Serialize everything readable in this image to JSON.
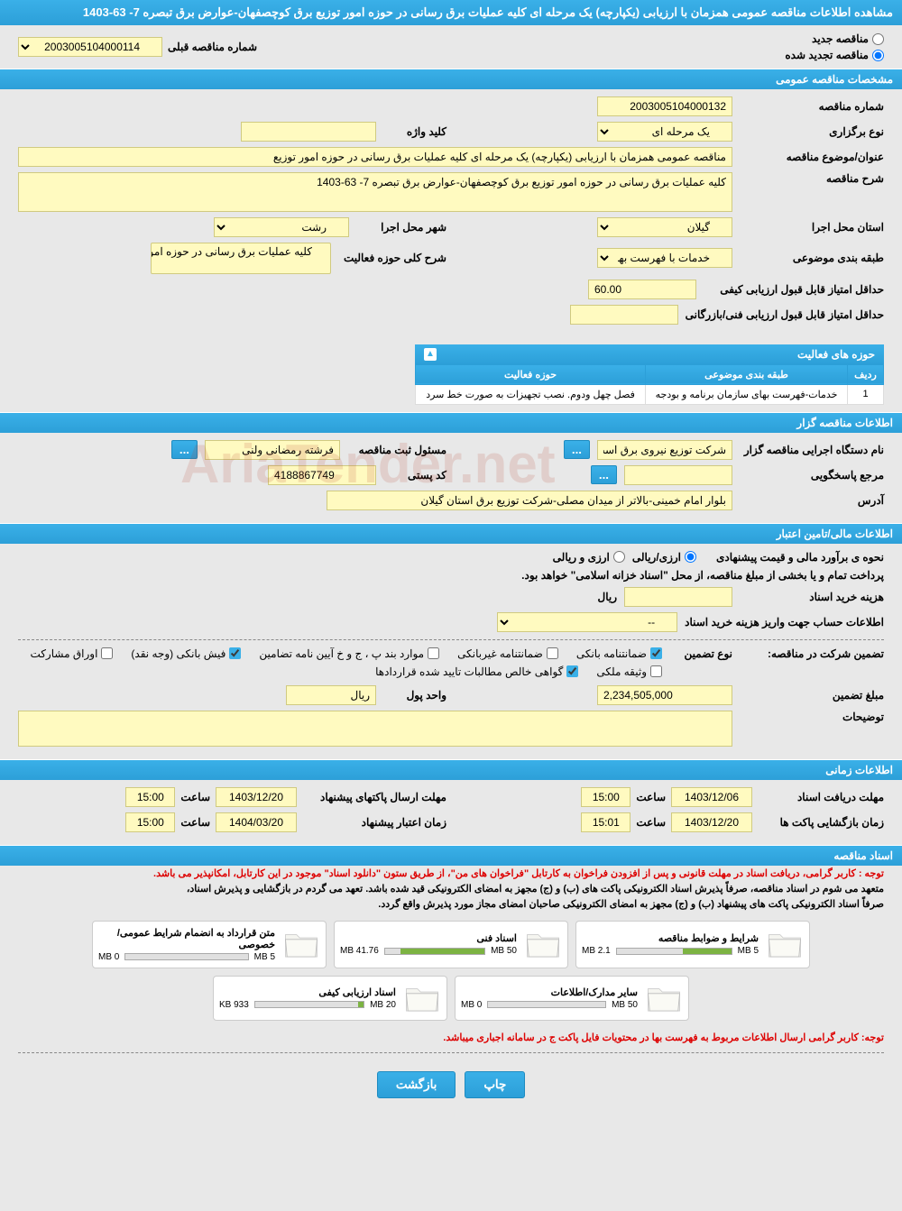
{
  "header": {
    "title": "مشاهده اطلاعات مناقصه عمومی همزمان با ارزیابی (یکپارچه) یک مرحله ای کلیه عملیات برق رسانی در حوزه امور توزیع برق کوچصفهان-عوارض برق تبصره 7- 63-1403"
  },
  "topRadio": {
    "new": "مناقصه جدید",
    "renewed": "مناقصه تجدید شده",
    "prevLabel": "شماره مناقصه قبلی",
    "prevValue": "2003005104000114"
  },
  "sections": {
    "general": "مشخصات مناقصه عمومی",
    "organizer": "اطلاعات مناقصه گزار",
    "financial": "اطلاعات مالی/تامین اعتبار",
    "timing": "اطلاعات زمانی",
    "docs": "اسناد مناقصه"
  },
  "general": {
    "tenderNumberLabel": "شماره مناقصه",
    "tenderNumber": "2003005104000132",
    "typeLabel": "نوع برگزاری",
    "typeValue": "یک مرحله ای",
    "keywordLabel": "کلید واژه",
    "keywordValue": "",
    "subjectLabel": "عنوان/موضوع مناقصه",
    "subjectValue": "مناقصه عمومی همزمان با ارزیابی (یکپارچه) یک مرحله ای کلیه عملیات برق رسانی در حوزه امور توزیع",
    "descLabel": "شرح مناقصه",
    "descValue": "کلیه عملیات برق رسانی در حوزه امور توزیع برق کوچصفهان-عوارض برق تبصره 7- 63-1403",
    "provinceLabel": "استان محل اجرا",
    "provinceValue": "گیلان",
    "cityLabel": "شهر محل اجرا",
    "cityValue": "رشت",
    "categoryLabel": "طبقه بندی موضوعی",
    "categoryValue": "خدمات با فهرست بها",
    "scopeLabel": "شرح کلی حوزه فعالیت",
    "scopeValue": "کلیه عملیات برق رسانی در حوزه امور توزیع برق",
    "minScoreQualLabel": "حداقل امتیاز قابل قبول ارزیابی کیفی",
    "minScoreQual": "60.00",
    "minScoreTechLabel": "حداقل امتیاز قابل قبول ارزیابی فنی/بازرگانی",
    "minScoreTech": ""
  },
  "activityTable": {
    "title": "حوزه های فعالیت",
    "cols": [
      "ردیف",
      "طبقه بندی موضوعی",
      "حوزه فعالیت"
    ],
    "rows": [
      [
        "1",
        "خدمات-فهرست بهای سازمان برنامه و بودجه",
        "فصل چهل ودوم. نصب تجهیزات به صورت خط سرد"
      ]
    ]
  },
  "organizer": {
    "orgLabel": "نام دستگاه اجرایی مناقصه گزار",
    "orgValue": "شرکت توزیع نیروی برق است",
    "responsibleLabel": "مسئول ثبت مناقصه",
    "responsibleValue": "فرشته رمضانی ولنی",
    "phoneLabel": "مرجع پاسخگویی",
    "phoneValue": "",
    "postalLabel": "کد پستی",
    "postalValue": "4188867749",
    "addressLabel": "آدرس",
    "addressValue": "بلوار امام خمینی-بالاتر از میدان مصلی-شرکت توزیع برق استان گیلان"
  },
  "financial": {
    "methodLabel": "نحوه ی برآورد مالی و قیمت پیشنهادی",
    "methodOpt1": "ارزی/ریالی",
    "methodOpt2": "ارزی و ریالی",
    "treasuryNote": "پرداخت تمام و یا بخشی از مبلغ مناقصه، از محل \"اسناد خزانه اسلامی\" خواهد بود.",
    "docCostLabel": "هزینه خرید اسناد",
    "docCostValue": "",
    "currencyRial": "ریال",
    "accountLabel": "اطلاعات حساب جهت واریز هزینه خرید اسناد",
    "accountValue": "--",
    "guaranteeLabel": "تضمین شرکت در مناقصه:",
    "guaranteeTypeLabel": "نوع تضمین",
    "gt1": "ضمانتنامه بانکی",
    "gt2": "ضمانتنامه غیربانکی",
    "gt3": "موارد بند پ ، ج و خ آیین نامه تضامین",
    "gt4": "فیش بانکی (وجه نقد)",
    "gt5": "اوراق مشارکت",
    "gt6": "وثیقه ملکی",
    "gt7": "گواهی خالص مطالبات تایید شده قراردادها",
    "guaranteeAmountLabel": "مبلغ تضمین",
    "guaranteeAmount": "2,234,505,000",
    "unitLabel": "واحد پول",
    "unitValue": "ریال",
    "notesLabel": "توضیحات",
    "notesValue": ""
  },
  "timing": {
    "receiveDocLabel": "مهلت دریافت اسناد",
    "receiveDocDate": "1403/12/06",
    "receiveDocTimeLabel": "ساعت",
    "receiveDocTime": "15:00",
    "sendEnvelopeLabel": "مهلت ارسال پاکتهای پیشنهاد",
    "sendEnvelopeDate": "1403/12/20",
    "sendEnvelopeTime": "15:00",
    "openEnvelopeLabel": "زمان بازگشایی پاکت ها",
    "openEnvelopeDate": "1403/12/20",
    "openEnvelopeTime": "15:01",
    "validityLabel": "زمان اعتبار پیشنهاد",
    "validityDate": "1404/03/20",
    "validityTime": "15:00"
  },
  "notices": {
    "n1": "توجه : کاربر گرامی، دریافت اسناد در مهلت قانونی و پس از افزودن فراخوان به کارتابل \"فراخوان های من\"، از طریق ستون \"دانلود اسناد\" موجود در این کارتابل، امکانپذیر می باشد.",
    "n2": "متعهد می شوم در اسناد مناقصه، صرفاً پذیرش اسناد الکترونیکی پاکت های (ب) و (ج) مجهز به امضای الکترونیکی قید شده باشد. تعهد می گردم در بازگشایی و پذیرش اسناد،",
    "n3": "صرفاً اسناد الکترونیکی پاکت های پیشنهاد (ب) و (ج) مجهز به امضای الکترونیکی صاحبان امضای مجاز مورد پذیرش واقع گردد.",
    "n4": "توجه: کاربر گرامی ارسال اطلاعات مربوط به فهرست بها در محتویات فایل پاکت ج در سامانه اجباری میباشد."
  },
  "docs": [
    {
      "title": "شرایط و ضوابط مناقصه",
      "used": "2.1 MB",
      "total": "5 MB",
      "pct": 42
    },
    {
      "title": "اسناد فنی",
      "used": "41.76 MB",
      "total": "50 MB",
      "pct": 84
    },
    {
      "title": "متن قرارداد به انضمام شرایط عمومی/خصوصی",
      "used": "0 MB",
      "total": "5 MB",
      "pct": 0
    },
    {
      "title": "سایر مدارک/اطلاعات",
      "used": "0 MB",
      "total": "50 MB",
      "pct": 0
    },
    {
      "title": "اسناد ارزیابی کیفی",
      "used": "933 KB",
      "total": "20 MB",
      "pct": 5
    }
  ],
  "buttons": {
    "print": "چاپ",
    "back": "بازگشت"
  },
  "watermark": "AriaTender.net",
  "dots": "..."
}
